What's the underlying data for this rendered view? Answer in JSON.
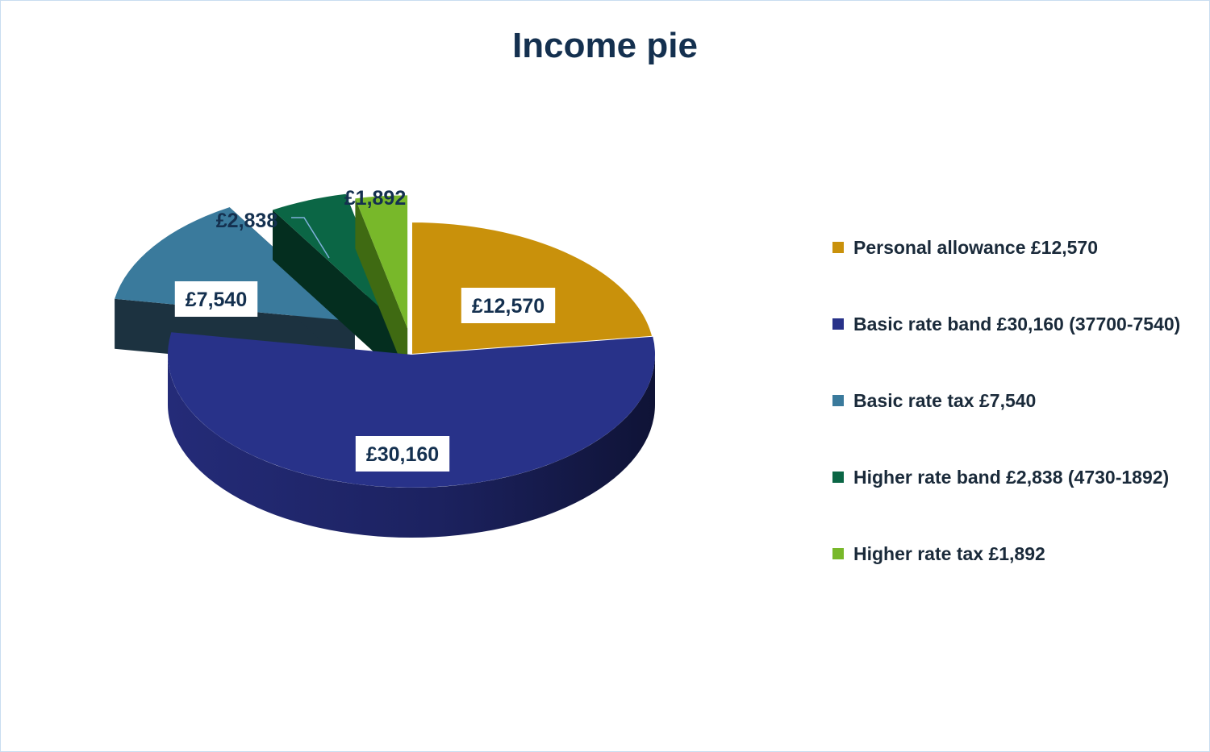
{
  "chart_data": {
    "type": "pie",
    "title": "Income pie",
    "slices": [
      {
        "label": "Personal allowance £12,570",
        "value": 12570,
        "data_label": "£12,570",
        "color": "#c9910b"
      },
      {
        "label": "Basic rate band £30,160 (37700-7540)",
        "value": 30160,
        "data_label": "£30,160",
        "color": "#283289"
      },
      {
        "label": "Basic rate tax £7,540",
        "value": 7540,
        "data_label": "£7,540",
        "color": "#3a7a9c"
      },
      {
        "label": "Higher rate band £2,838 (4730-1892)",
        "value": 2838,
        "data_label": "£2,838",
        "color": "#0b6645"
      },
      {
        "label": "Higher rate tax £1,892",
        "value": 1892,
        "data_label": "£1,892",
        "color": "#78b82a"
      }
    ],
    "legend_position": "right",
    "style": "3d exploded"
  }
}
